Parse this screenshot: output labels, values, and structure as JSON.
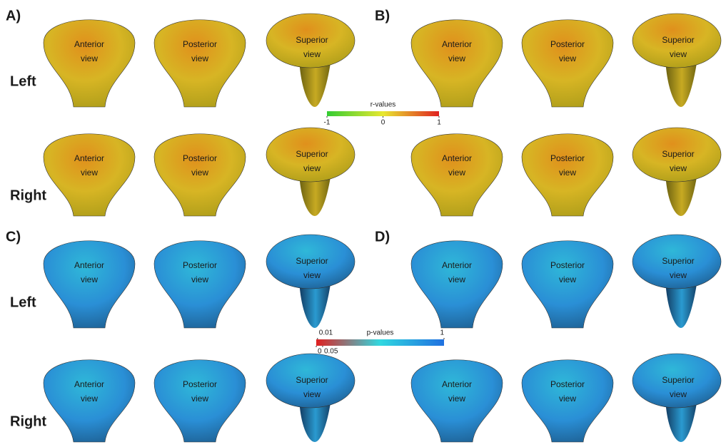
{
  "sections": [
    {
      "row_labels": [
        "Left",
        "Right"
      ],
      "panels": [
        {
          "label": "A)",
          "rows": [
            [
              [
                "Anterior",
                "view"
              ],
              [
                "Posterior",
                "view"
              ],
              [
                "Superior",
                "view"
              ]
            ],
            [
              [
                "Anterior",
                "view"
              ],
              [
                "Posterior",
                "view"
              ],
              [
                "Superior",
                "view"
              ]
            ]
          ]
        },
        {
          "label": "B)",
          "rows": [
            [
              [
                "Anterior",
                "view"
              ],
              [
                "Posterior",
                "view"
              ],
              [
                "Superior",
                "view"
              ]
            ],
            [
              [
                "Anterior",
                "view"
              ],
              [
                "Posterior",
                "view"
              ],
              [
                "Superior",
                "view"
              ]
            ]
          ]
        }
      ],
      "colorbar": {
        "title": "r-values",
        "lim": [
          -1,
          1
        ],
        "ticks_top": [],
        "ticks_bottom": [
          -1,
          0,
          1
        ],
        "colors": [
          "#33cc33",
          "#e8e830",
          "#e02020"
        ]
      }
    },
    {
      "row_labels": [
        "Left",
        "Right"
      ],
      "panels": [
        {
          "label": "C)",
          "rows": [
            [
              [
                "Anterior",
                "view"
              ],
              [
                "Posterior",
                "view"
              ],
              [
                "Superior",
                "view"
              ]
            ],
            [
              [
                "Anterior",
                "view"
              ],
              [
                "Posterior",
                "view"
              ],
              [
                "Superior",
                "view"
              ]
            ]
          ]
        },
        {
          "label": "D)",
          "rows": [
            [
              [
                "Anterior",
                "view"
              ],
              [
                "Posterior",
                "view"
              ],
              [
                "Superior",
                "view"
              ]
            ],
            [
              [
                "Anterior",
                "view"
              ],
              [
                "Posterior",
                "view"
              ],
              [
                "Superior",
                "view"
              ]
            ]
          ]
        }
      ],
      "colorbar": {
        "title": "p-values",
        "lim": [
          0,
          1
        ],
        "ticks_top": [
          0.01,
          1
        ],
        "ticks_bottom": [
          0,
          0.05
        ],
        "colors": [
          "#e02020",
          "#30d8e0",
          "#2070e0"
        ]
      }
    }
  ]
}
